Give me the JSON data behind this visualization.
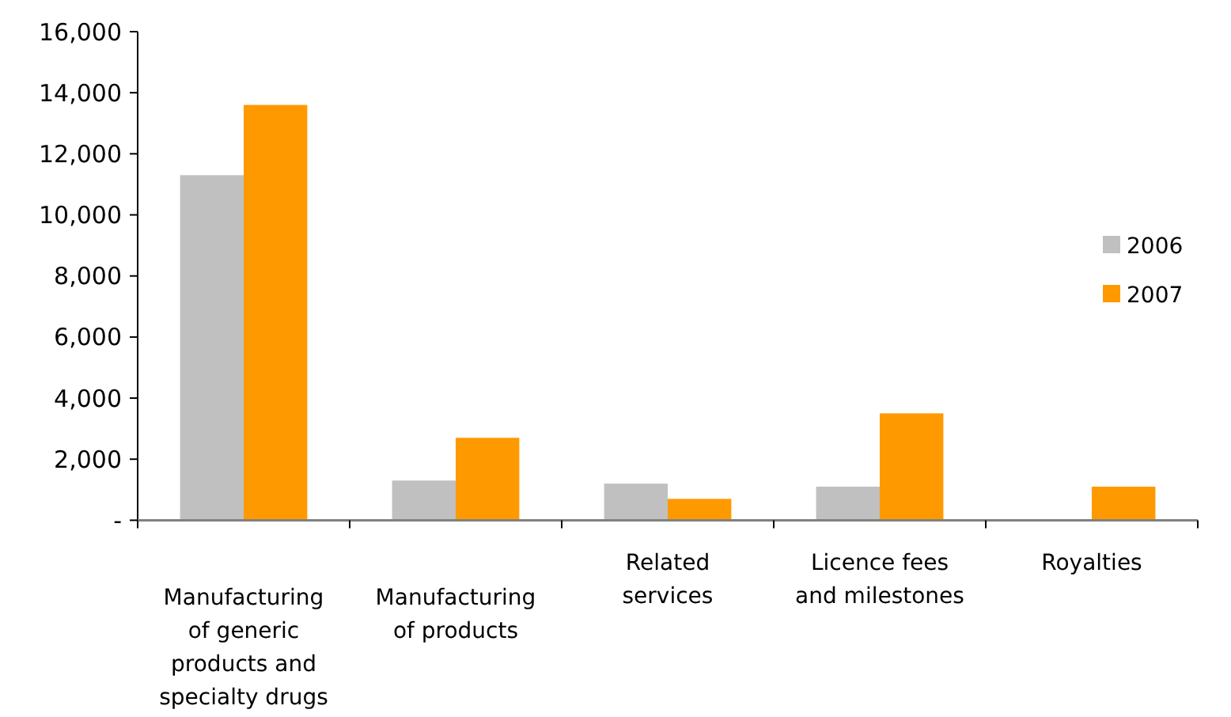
{
  "chart_data": {
    "type": "bar",
    "categories": [
      "Manufacturing of generic products and specialty drugs",
      "Manufacturing of products",
      "Related services",
      "Licence fees and milestones",
      "Royalties"
    ],
    "series": [
      {
        "name": "2006",
        "color": "#c0c0c0",
        "values": [
          11300,
          1300,
          1200,
          1100,
          0
        ]
      },
      {
        "name": "2007",
        "color": "#ff9900",
        "values": [
          13600,
          2700,
          700,
          3500,
          1100
        ]
      }
    ],
    "ylim": [
      0,
      16000
    ],
    "yticks": [
      {
        "value": 0,
        "label": "-"
      },
      {
        "value": 2000,
        "label": "2,000"
      },
      {
        "value": 4000,
        "label": "4,000"
      },
      {
        "value": 6000,
        "label": "6,000"
      },
      {
        "value": 8000,
        "label": "8,000"
      },
      {
        "value": 10000,
        "label": "10,000"
      },
      {
        "value": 12000,
        "label": "12,000"
      },
      {
        "value": 14000,
        "label": "14,000"
      },
      {
        "value": 16000,
        "label": "16,000"
      }
    ],
    "grid": false,
    "legend": "right"
  }
}
